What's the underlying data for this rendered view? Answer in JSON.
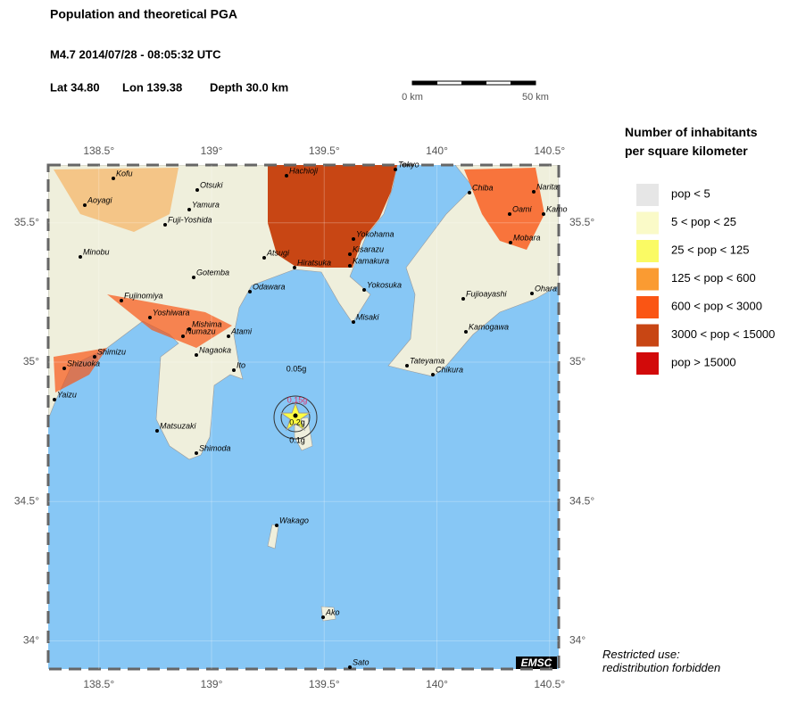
{
  "header": {
    "title": "Population and theoretical PGA",
    "event": "M4.7  2014/07/28 - 08:05:32 UTC",
    "lat": "Lat 34.80",
    "lon": "Lon 139.38",
    "depth": "Depth  30.0 km"
  },
  "scale_bar": {
    "start": "0 km",
    "end": "50 km"
  },
  "map": {
    "xticks": [
      {
        "value": 138.5,
        "label": "138.5°"
      },
      {
        "value": 139,
        "label": "139°"
      },
      {
        "value": 139.5,
        "label": "139.5°"
      },
      {
        "value": 140,
        "label": "140°"
      },
      {
        "value": 140.5,
        "label": "140.5°"
      }
    ],
    "yticks": [
      {
        "value": 35.5,
        "label": "35.5°"
      },
      {
        "value": 35,
        "label": "35°"
      },
      {
        "value": 34.5,
        "label": "34.5°"
      },
      {
        "value": 34,
        "label": "34°"
      }
    ],
    "cities": [
      "Kofu",
      "Hachioji",
      "Tokyo",
      "Aoyagi",
      "Otsuki",
      "Chiba",
      "Narita",
      "Oami",
      "Kamo",
      "Yamura",
      "Fuji-Yoshida",
      "Minobu",
      "Atsugi",
      "Yokohama",
      "Mobara",
      "Gotemba",
      "Kisarazu",
      "Hiratsuka",
      "Kamakura",
      "Odawara",
      "Yokosuka",
      "Fujioayashi",
      "Ohara",
      "Fujinomiya",
      "Yoshiwara",
      "Mishima",
      "Numazu",
      "Atami",
      "Misaki",
      "Kamogawa",
      "Shimizu",
      "Nagaoka",
      "Shizuoka",
      "Ito",
      "Tateyama",
      "Chikura",
      "Yaizu",
      "Matsuzaki",
      "Shimoda",
      "Wakago",
      "Ako",
      "Sato"
    ],
    "pga_contours": [
      "0.05g",
      "0.15g",
      "0.2g",
      "0.1g"
    ],
    "credit": "EMSC"
  },
  "legend": {
    "title": "Number of inhabitants per square kilometer",
    "items": [
      {
        "label": "pop < 5",
        "color": "#e6e6e6"
      },
      {
        "label": "5 < pop < 25",
        "color": "#fafac8"
      },
      {
        "label": "25 < pop < 125",
        "color": "#fafa64"
      },
      {
        "label": "125 < pop < 600",
        "color": "#fa9b32"
      },
      {
        "label": "600 < pop < 3000",
        "color": "#fa5514"
      },
      {
        "label": "3000 < pop < 15000",
        "color": "#c84614"
      },
      {
        "label": "pop > 15000",
        "color": "#d20a0a"
      }
    ]
  },
  "notice": "Restricted use: redistribution forbidden"
}
